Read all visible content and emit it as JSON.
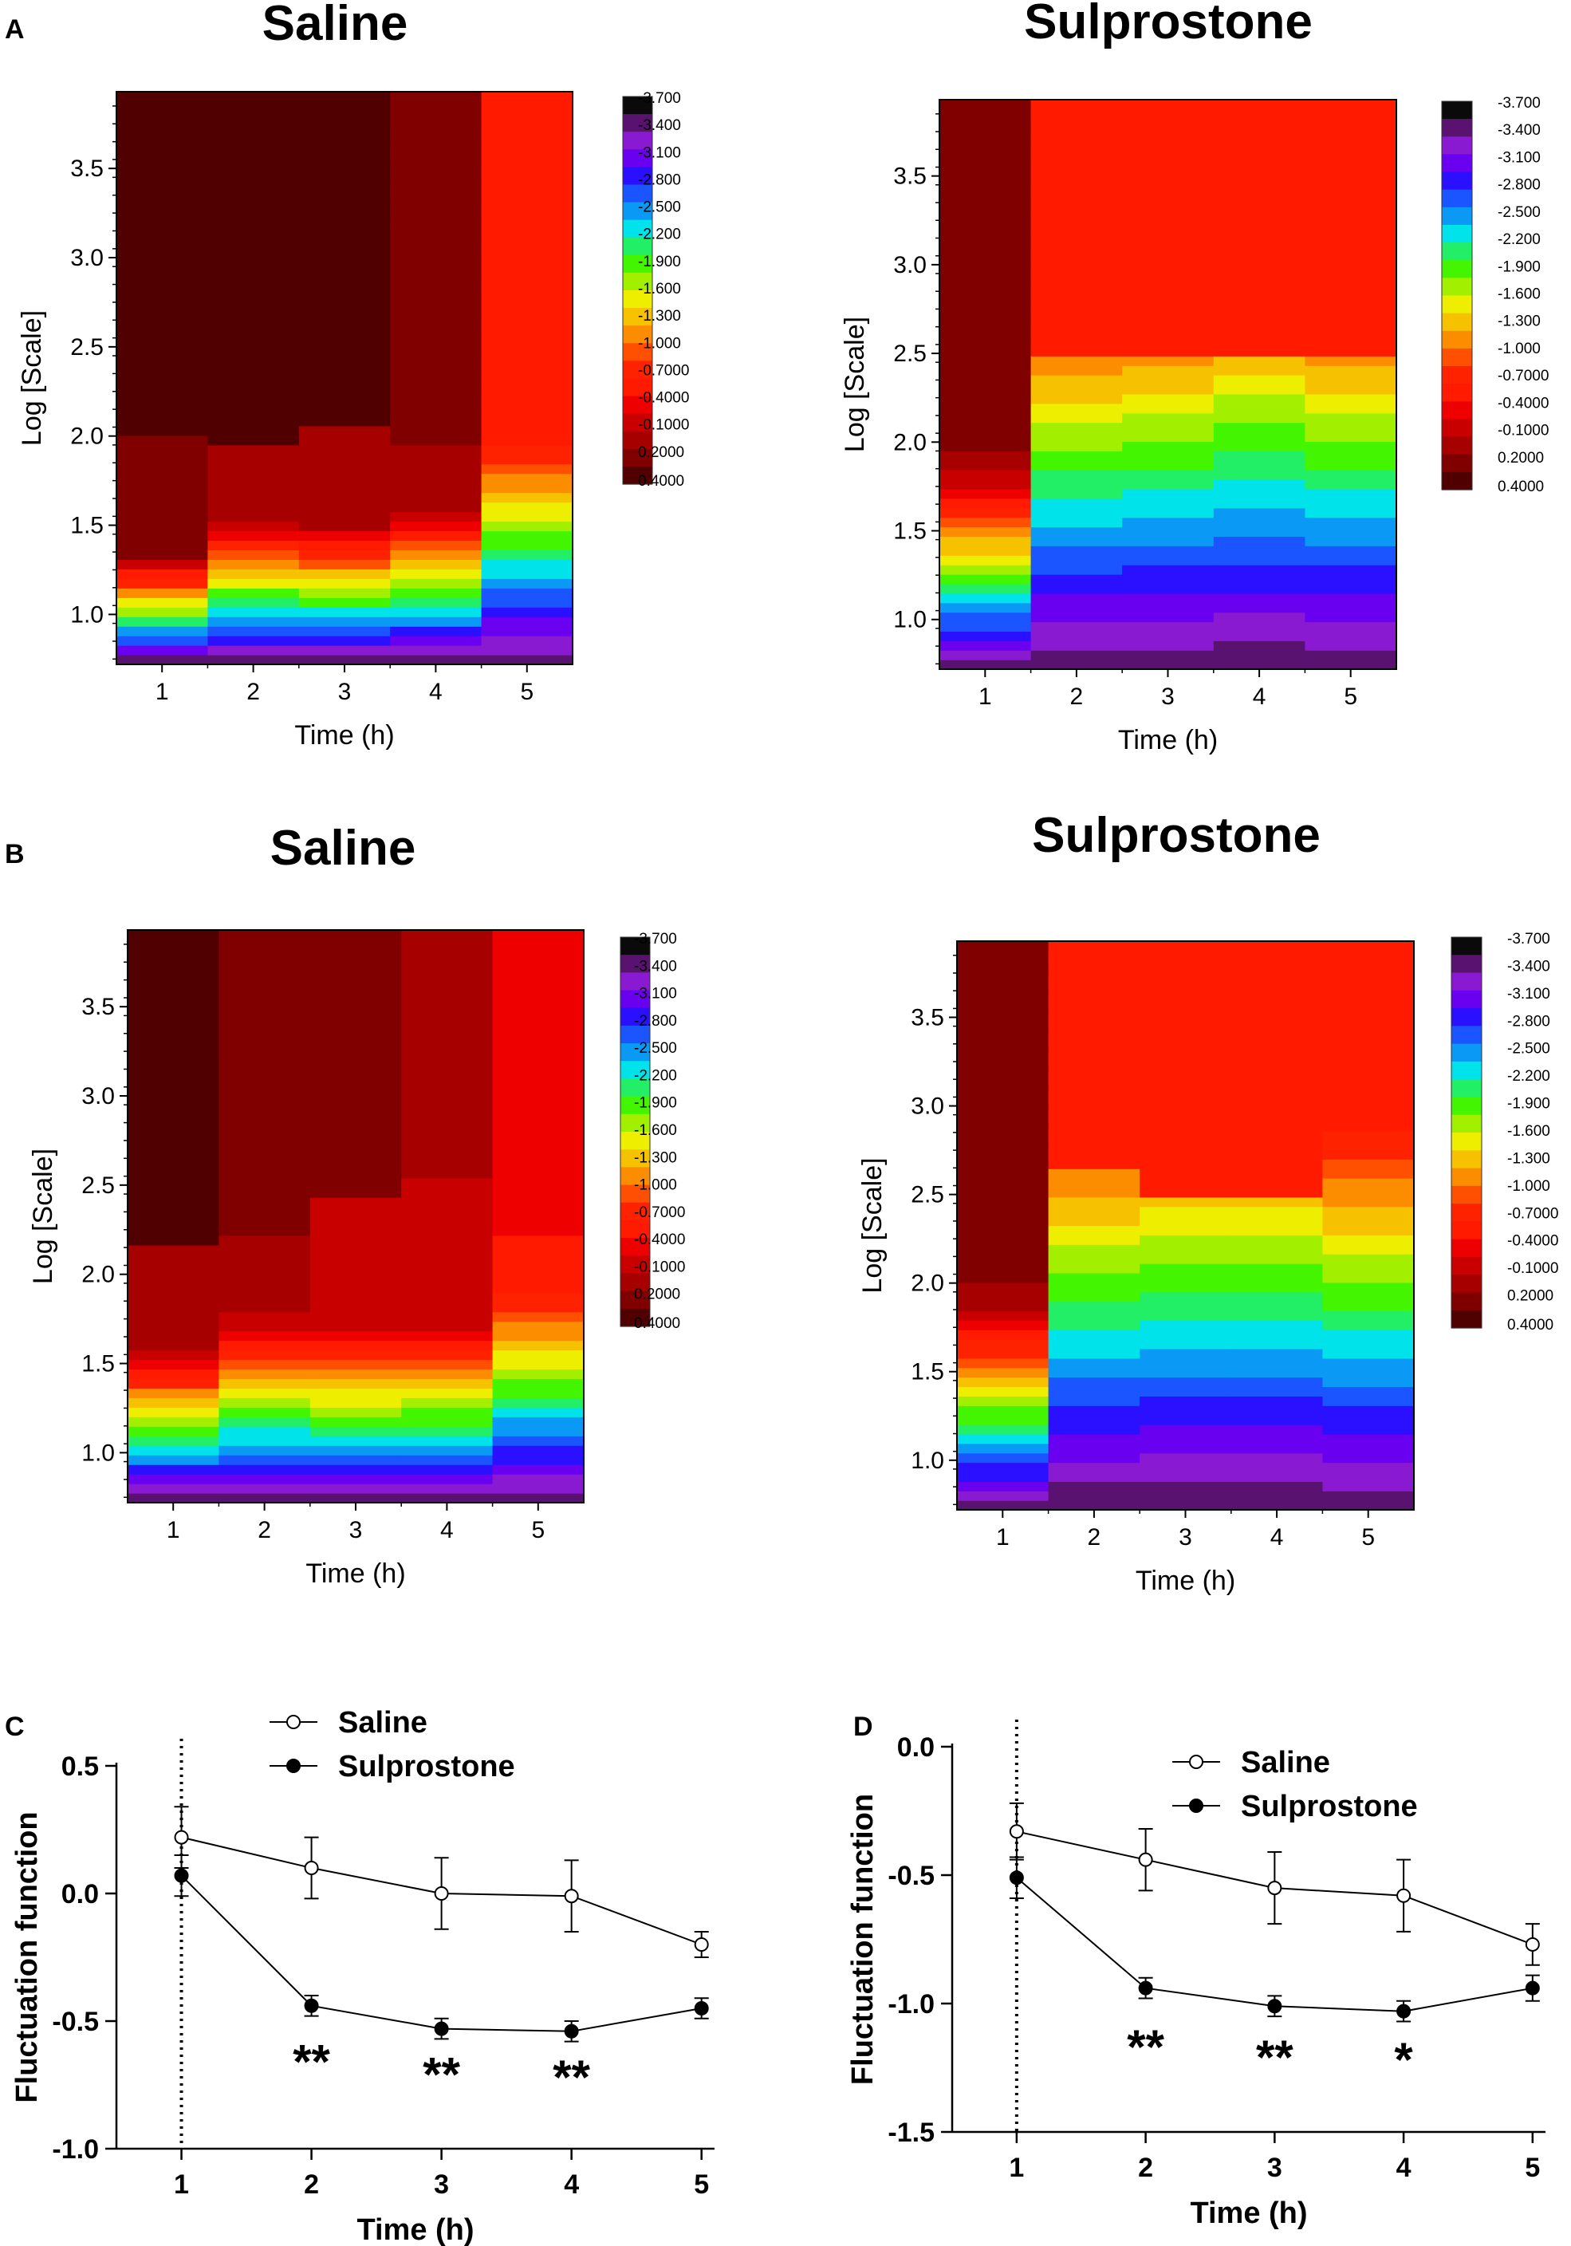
{
  "figure": {
    "panel_labels": [
      "A",
      "B",
      "C",
      "D"
    ]
  },
  "colorbar": {
    "labels": [
      "-3.700",
      "-3.400",
      "-3.100",
      "-2.800",
      "-2.500",
      "-2.200",
      "-1.900",
      "-1.600",
      "-1.300",
      "-1.000",
      "-0.7000",
      "-0.4000",
      "-0.1000",
      "0.2000",
      "0.4000"
    ],
    "colors": [
      "#0a0a0a",
      "#5a1270",
      "#8a1ad2",
      "#6a00f0",
      "#2a10ff",
      "#1a55ff",
      "#0a9af5",
      "#00e3ea",
      "#22ee66",
      "#44f500",
      "#a3ef00",
      "#eeee00",
      "#f6c200",
      "#fc8c00",
      "#fe5000",
      "#ff2200",
      "#ff1a00",
      "#ee0000",
      "#c80000",
      "#a60000",
      "#800000",
      "#500000"
    ],
    "vmin": -3.7,
    "vmax": 0.4
  },
  "chart_data": [
    {
      "type": "heatmap",
      "panel": "A",
      "title": "Saline",
      "xlabel": "Time (h)",
      "ylabel": "Log [Scale]",
      "x": [
        1,
        2,
        3,
        4,
        5
      ],
      "xlim": [
        0.5,
        5.5
      ],
      "ylim": [
        0.72,
        3.93
      ],
      "yticks": [
        "1.0",
        "1.5",
        "2.0",
        "2.5",
        "3.0",
        "3.5"
      ],
      "columns": [
        {
          "x": 1,
          "topValue": 0.4,
          "boundary": 2.02,
          "r": 0.62,
          "midValue": 0.12
        },
        {
          "x": 2,
          "topValue": 0.3,
          "boundary": 1.95,
          "r": 0.85,
          "midValue": 0.0
        },
        {
          "x": 3,
          "topValue": 0.3,
          "boundary": 2.07,
          "r": 0.8,
          "midValue": -0.05
        },
        {
          "x": 4,
          "topValue": 0.15,
          "boundary": 1.93,
          "r": 0.88,
          "midValue": -0.1
        },
        {
          "x": 5,
          "topValue": -0.55,
          "boundary": 2.05,
          "r": 1.28,
          "midValue": -0.6
        }
      ]
    },
    {
      "type": "heatmap",
      "panel": "A",
      "title": "Sulprostone",
      "xlabel": "Time (h)",
      "ylabel": "Log [Scale]",
      "x": [
        1,
        2,
        3,
        4,
        5
      ],
      "xlim": [
        0.5,
        5.5
      ],
      "ylim": [
        0.72,
        3.93
      ],
      "yticks": [
        "1.0",
        "1.5",
        "2.0",
        "2.5",
        "3.0",
        "3.5"
      ],
      "columns": [
        {
          "x": 1,
          "topValue": 0.05,
          "boundary": 1.95,
          "r": 1.1,
          "midValue": -0.15
        },
        {
          "x": 2,
          "topValue": -0.55,
          "boundary": 2.5,
          "r": 2.15,
          "midValue": -0.62
        },
        {
          "x": 3,
          "topValue": -0.62,
          "boundary": 2.5,
          "r": 2.2,
          "midValue": -0.65
        },
        {
          "x": 4,
          "topValue": -0.65,
          "boundary": 2.5,
          "r": 2.35,
          "midValue": -0.65
        },
        {
          "x": 5,
          "topValue": -0.65,
          "boundary": 2.5,
          "r": 2.2,
          "midValue": -0.65
        }
      ]
    },
    {
      "type": "heatmap",
      "panel": "B",
      "title": "Saline",
      "xlabel": "Time (h)",
      "ylabel": "Log [Scale]",
      "x": [
        1,
        2,
        3,
        4,
        5
      ],
      "xlim": [
        0.5,
        5.5
      ],
      "ylim": [
        0.72,
        3.93
      ],
      "yticks": [
        "1.0",
        "1.5",
        "2.0",
        "2.5",
        "3.0",
        "3.5"
      ],
      "columns": [
        {
          "x": 1,
          "topValue": 0.3,
          "boundary": 2.17,
          "r": 0.9,
          "midValue": 0.0
        },
        {
          "x": 2,
          "topValue": 0.1,
          "boundary": 2.2,
          "r": 1.05,
          "midValue": -0.15
        },
        {
          "x": 3,
          "topValue": 0.05,
          "boundary": 2.43,
          "r": 1.0,
          "midValue": -0.2
        },
        {
          "x": 4,
          "topValue": -0.1,
          "boundary": 2.55,
          "r": 1.0,
          "midValue": -0.25
        },
        {
          "x": 5,
          "topValue": -0.45,
          "boundary": 2.2,
          "r": 1.22,
          "midValue": -0.55
        }
      ]
    },
    {
      "type": "heatmap",
      "panel": "B",
      "title": "Sulprostone",
      "xlabel": "Time (h)",
      "ylabel": "Log [Scale]",
      "x": [
        1,
        2,
        3,
        4,
        5
      ],
      "xlim": [
        0.5,
        5.5
      ],
      "ylim": [
        0.72,
        3.93
      ],
      "yticks": [
        "1.0",
        "1.5",
        "2.0",
        "2.5",
        "3.0",
        "3.5"
      ],
      "columns": [
        {
          "x": 1,
          "topValue": 0.1,
          "boundary": 2.0,
          "r": 1.15,
          "midValue": -0.1
        },
        {
          "x": 2,
          "topValue": -0.55,
          "boundary": 2.65,
          "r": 2.3,
          "midValue": -0.62
        },
        {
          "x": 3,
          "topValue": -0.65,
          "boundary": 2.5,
          "r": 2.4,
          "midValue": -0.65
        },
        {
          "x": 4,
          "topValue": -0.65,
          "boundary": 2.5,
          "r": 2.4,
          "midValue": -0.65
        },
        {
          "x": 5,
          "topValue": -0.6,
          "boundary": 3.5,
          "r": 2.2,
          "midValue": -0.65
        }
      ]
    },
    {
      "type": "line",
      "panel": "C",
      "xlabel": "Time (h)",
      "ylabel": "Fluctuation function",
      "x": [
        1,
        2,
        3,
        4,
        5
      ],
      "xlim": [
        0.5,
        5.1
      ],
      "ylim": [
        -1.0,
        0.5
      ],
      "yticks": [
        "0.5",
        "0.0",
        "-0.5",
        "-1.0"
      ],
      "xticks": [
        "1",
        "2",
        "3",
        "4",
        "5"
      ],
      "vline_x": 1,
      "series": [
        {
          "name": "Saline",
          "values": [
            0.22,
            0.1,
            0.0,
            -0.01,
            -0.2
          ],
          "err": [
            0.12,
            0.12,
            0.14,
            0.14,
            0.05
          ]
        },
        {
          "name": "Sulprostone",
          "values": [
            0.07,
            -0.44,
            -0.53,
            -0.54,
            -0.45
          ],
          "err": [
            0.08,
            0.04,
            0.04,
            0.04,
            0.04
          ]
        }
      ],
      "annotations": [
        {
          "x": 2,
          "y": -0.63,
          "text": "**"
        },
        {
          "x": 3,
          "y": -0.68,
          "text": "**"
        },
        {
          "x": 4,
          "y": -0.69,
          "text": "**"
        }
      ]
    },
    {
      "type": "line",
      "panel": "D",
      "xlabel": "Time (h)",
      "ylabel": "Fluctuation function",
      "x": [
        1,
        2,
        3,
        4,
        5
      ],
      "xlim": [
        0.5,
        5.1
      ],
      "ylim": [
        -1.5,
        0.0
      ],
      "yticks": [
        "0.0",
        "-0.5",
        "-1.0",
        "-1.5"
      ],
      "xticks": [
        "1",
        "2",
        "3",
        "4",
        "5"
      ],
      "vline_x": 1,
      "series": [
        {
          "name": "Saline",
          "values": [
            -0.33,
            -0.44,
            -0.55,
            -0.58,
            -0.77
          ],
          "err": [
            0.11,
            0.12,
            0.14,
            0.14,
            0.08
          ]
        },
        {
          "name": "Sulprostone",
          "values": [
            -0.51,
            -0.94,
            -1.01,
            -1.03,
            -0.94
          ],
          "err": [
            0.08,
            0.04,
            0.04,
            0.04,
            0.05
          ]
        }
      ],
      "annotations": [
        {
          "x": 2,
          "y": -1.14,
          "text": "**"
        },
        {
          "x": 3,
          "y": -1.18,
          "text": "**"
        },
        {
          "x": 4,
          "y": -1.19,
          "text": "*"
        }
      ]
    }
  ]
}
